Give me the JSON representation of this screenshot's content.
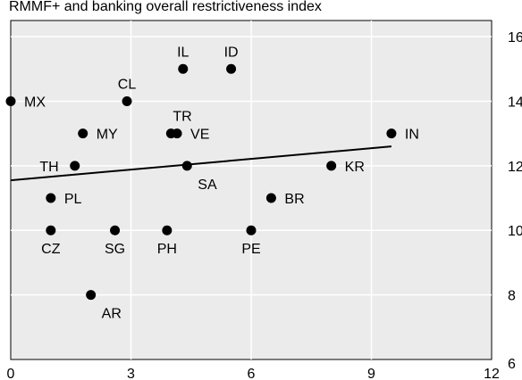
{
  "chart_data": {
    "type": "scatter",
    "title": "RMMF+ and banking overall restrictiveness index",
    "xlim": [
      0,
      12
    ],
    "ylim": [
      6,
      16.5
    ],
    "x_ticks": [
      0,
      3,
      6,
      9,
      12
    ],
    "y_ticks": [
      6,
      8,
      10,
      12,
      14,
      16
    ],
    "grid": true,
    "points": [
      {
        "label": "MX",
        "x": 0.0,
        "y": 14,
        "label_pos": "right"
      },
      {
        "label": "IL",
        "x": 4.3,
        "y": 15,
        "label_pos": "above"
      },
      {
        "label": "ID",
        "x": 5.5,
        "y": 15,
        "label_pos": "above"
      },
      {
        "label": "CL",
        "x": 2.9,
        "y": 14,
        "label_pos": "above"
      },
      {
        "label": "MY",
        "x": 1.8,
        "y": 13,
        "label_pos": "right"
      },
      {
        "label": "TR",
        "x": 4.0,
        "y": 13,
        "label_pos": "above-right"
      },
      {
        "label": "VE",
        "x": 4.15,
        "y": 13,
        "label_pos": "right"
      },
      {
        "label": "IN",
        "x": 9.5,
        "y": 13,
        "label_pos": "right"
      },
      {
        "label": "TH",
        "x": 1.6,
        "y": 12,
        "label_pos": "left"
      },
      {
        "label": "SA",
        "x": 4.4,
        "y": 12,
        "label_pos": "below-right"
      },
      {
        "label": "KR",
        "x": 8.0,
        "y": 12,
        "label_pos": "right"
      },
      {
        "label": "PL",
        "x": 1.0,
        "y": 11,
        "label_pos": "right"
      },
      {
        "label": "BR",
        "x": 6.5,
        "y": 11,
        "label_pos": "right"
      },
      {
        "label": "CZ",
        "x": 1.0,
        "y": 10,
        "label_pos": "below"
      },
      {
        "label": "SG",
        "x": 2.6,
        "y": 10,
        "label_pos": "below"
      },
      {
        "label": "PH",
        "x": 3.9,
        "y": 10,
        "label_pos": "below"
      },
      {
        "label": "PE",
        "x": 6.0,
        "y": 10,
        "label_pos": "below"
      },
      {
        "label": "AR",
        "x": 2.0,
        "y": 8,
        "label_pos": "below-right"
      }
    ],
    "trendline": {
      "x": [
        0,
        9.5
      ],
      "y": [
        11.55,
        12.6
      ]
    },
    "colors": {
      "plot_bg": "#ebebeb",
      "grid": "#ffffff",
      "point": "#000000",
      "line": "#000000"
    }
  }
}
